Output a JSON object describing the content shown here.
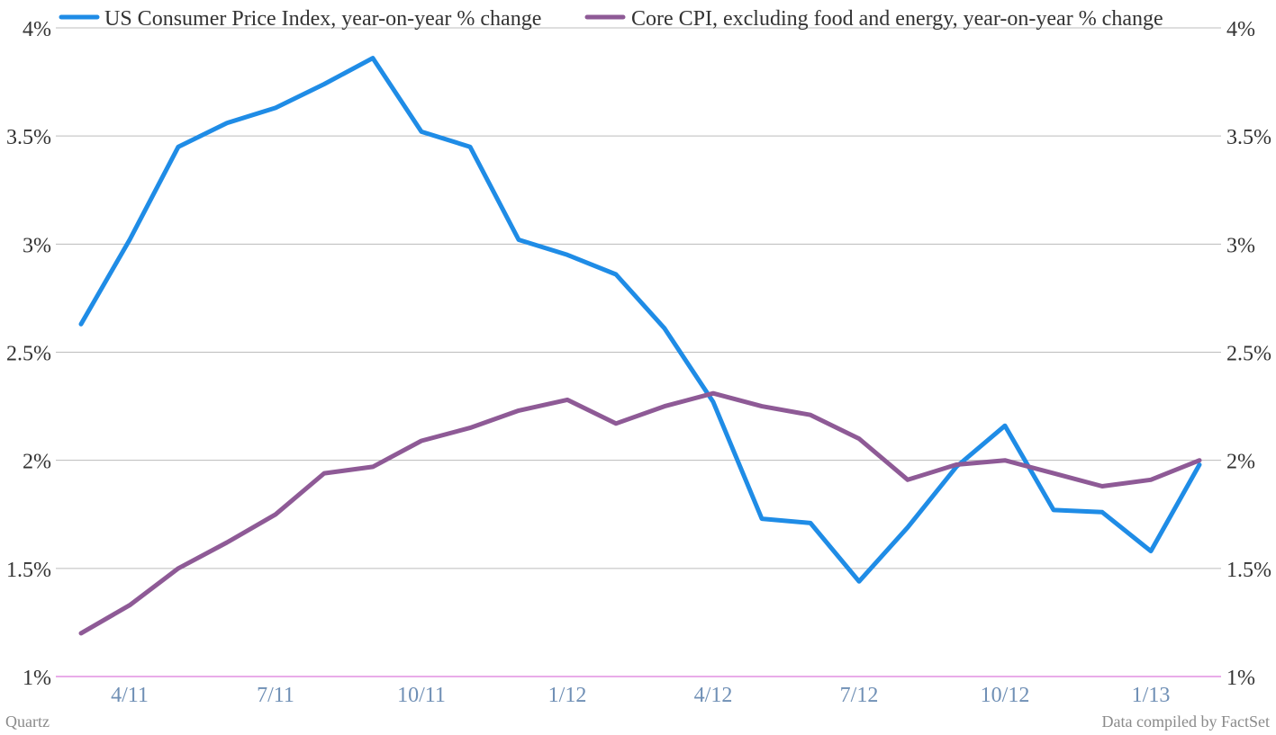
{
  "chart_data": {
    "type": "line",
    "x": [
      "3/11",
      "4/11",
      "5/11",
      "6/11",
      "7/11",
      "8/11",
      "9/11",
      "10/11",
      "11/11",
      "12/11",
      "1/12",
      "2/12",
      "3/12",
      "4/12",
      "5/12",
      "6/12",
      "7/12",
      "8/12",
      "9/12",
      "10/12",
      "11/12",
      "12/12",
      "1/13",
      "2/13"
    ],
    "x_tick_labels": [
      "4/11",
      "7/11",
      "10/11",
      "1/12",
      "4/12",
      "7/12",
      "10/12",
      "1/13"
    ],
    "series": [
      {
        "name": "US Consumer Price Index, year-on-year % change",
        "color": "#1f8ce6",
        "values": [
          2.63,
          3.02,
          3.45,
          3.56,
          3.63,
          3.74,
          3.86,
          3.52,
          3.45,
          3.02,
          2.95,
          2.86,
          2.61,
          2.27,
          1.73,
          1.71,
          1.44,
          1.69,
          1.97,
          2.16,
          1.77,
          1.76,
          1.58,
          1.98
        ]
      },
      {
        "name": "Core CPI, excluding food and energy, year-on-year % change",
        "color": "#8e5a96",
        "values": [
          1.2,
          1.33,
          1.5,
          1.62,
          1.75,
          1.94,
          1.97,
          2.09,
          2.15,
          2.23,
          2.28,
          2.17,
          2.25,
          2.31,
          2.25,
          2.21,
          2.1,
          1.91,
          1.98,
          2.0,
          1.94,
          1.88,
          1.91,
          2.0
        ]
      }
    ],
    "y_ticks": [
      {
        "value": 1.0,
        "label": "1%"
      },
      {
        "value": 1.5,
        "label": "1.5%"
      },
      {
        "value": 2.0,
        "label": "2%"
      },
      {
        "value": 2.5,
        "label": "2.5%"
      },
      {
        "value": 3.0,
        "label": "3%"
      },
      {
        "value": 3.5,
        "label": "3.5%"
      },
      {
        "value": 4.0,
        "label": "4%"
      }
    ],
    "ylim": [
      1,
      4
    ],
    "grid": true,
    "legend_position": "top",
    "source_left": "Quartz",
    "source_right": "Data compiled by FactSet"
  }
}
